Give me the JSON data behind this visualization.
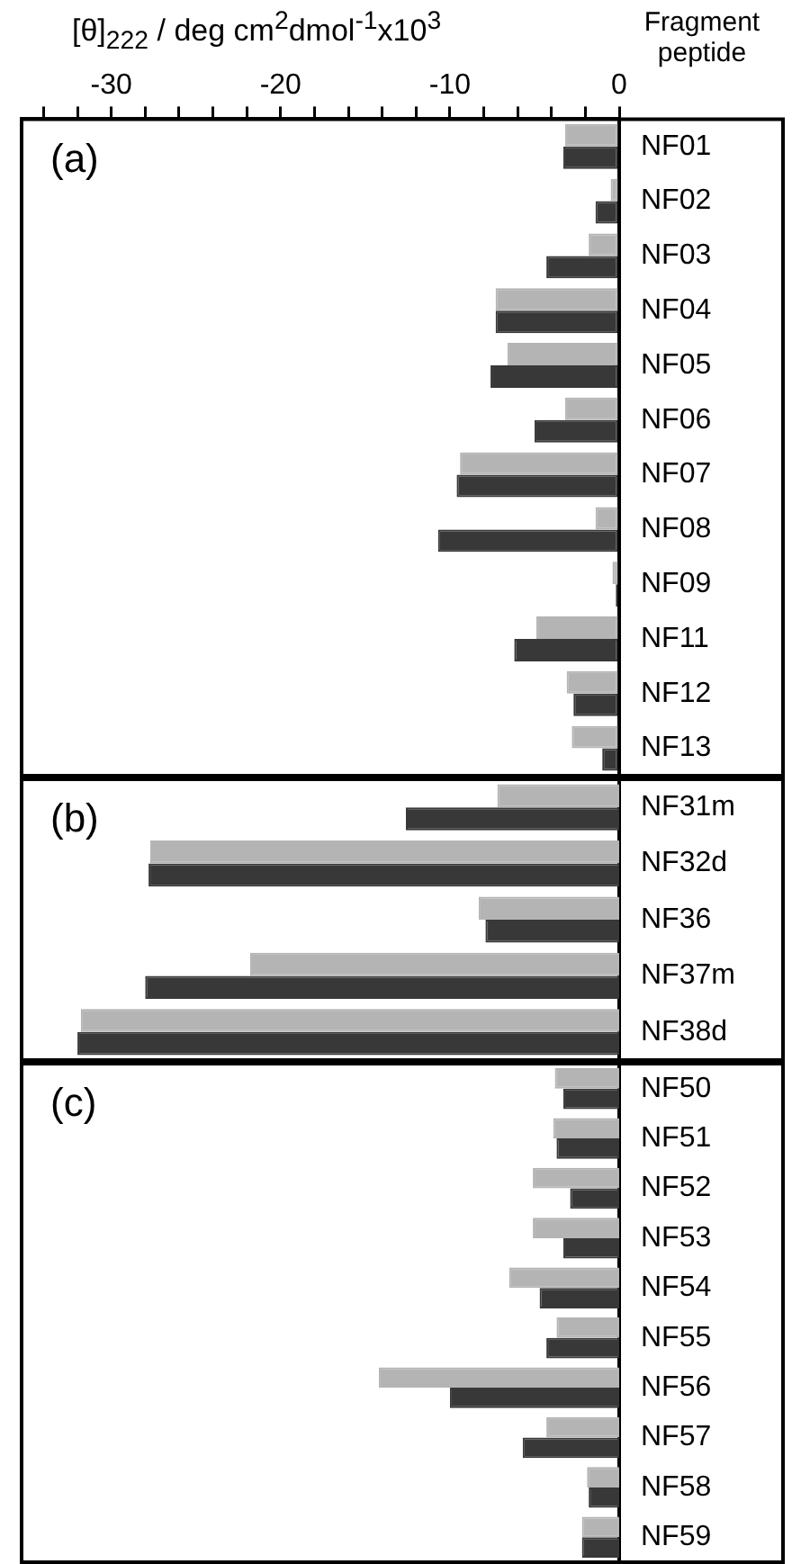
{
  "chart_data": [
    {
      "type": "bar",
      "orientation": "horizontal",
      "xlabel": "[θ]$_{222}$ / deg cm$^{2}$dmol$^{-1}$x10$^{3}$",
      "ylabel": "Fragment peptide",
      "annotations": [
        "(a)"
      ],
      "categories": [
        "NF01",
        "NF02",
        "NF03",
        "NF04",
        "NF05",
        "NF06",
        "NF07",
        "NF08",
        "NF09",
        "NF11",
        "NF12",
        "NF13"
      ],
      "series": [
        {
          "color": "#b4b4b4",
          "values": [
            -3.2,
            -0.5,
            -1.8,
            -7.3,
            -6.6,
            -3.2,
            -9.4,
            -1.4,
            -0.4,
            -4.9,
            -3.1,
            -2.8
          ]
        },
        {
          "color": "#383838",
          "values": [
            -3.3,
            -1.4,
            -4.3,
            -7.3,
            -7.6,
            -5.0,
            -9.6,
            -10.7,
            -0.2,
            -6.2,
            -2.7,
            -1.0
          ]
        }
      ],
      "xlim": [
        -35.3,
        0
      ],
      "xticks": [
        {
          "value": -34,
          "label": null
        },
        {
          "value": -32,
          "label": null
        },
        -30,
        {
          "value": -28,
          "label": null
        },
        {
          "value": -26,
          "label": null
        },
        {
          "value": -24,
          "label": null
        },
        {
          "value": -22,
          "label": null
        },
        -20,
        {
          "value": -18,
          "label": null
        },
        {
          "value": -16,
          "label": null
        },
        {
          "value": -14,
          "label": null
        },
        {
          "value": -12,
          "label": null
        },
        -10,
        {
          "value": -8,
          "label": null
        },
        {
          "value": -6,
          "label": null
        },
        {
          "value": -4,
          "label": null
        },
        {
          "value": -2,
          "label": null
        },
        0
      ]
    },
    {
      "type": "bar",
      "orientation": "horizontal",
      "annotations": [
        "(b)"
      ],
      "tick_labels": "y",
      "categories": [
        "NF31m",
        "NF32d",
        "NF36",
        "NF37m",
        "NF38d"
      ],
      "series": [
        {
          "color": "#b4b4b4",
          "values": [
            -7.2,
            -27.7,
            -8.3,
            -21.8,
            -31.8
          ]
        },
        {
          "color": "#383838",
          "values": [
            -12.6,
            -27.8,
            -7.9,
            -28.0,
            -32.0
          ]
        }
      ],
      "xlim": [
        -35.3,
        0
      ]
    },
    {
      "type": "bar",
      "orientation": "horizontal",
      "annotations": [
        "(c)"
      ],
      "tick_labels": "y",
      "categories": [
        "NF50",
        "NF51",
        "NF52",
        "NF53",
        "NF54",
        "NF55",
        "NF56",
        "NF57",
        "NF58",
        "NF59"
      ],
      "series": [
        {
          "color": "#b4b4b4",
          "values": [
            -3.8,
            -3.9,
            -5.1,
            -5.1,
            -6.5,
            -3.7,
            -14.2,
            -4.3,
            -1.9,
            -2.2
          ]
        },
        {
          "color": "#383838",
          "values": [
            -3.3,
            -3.7,
            -2.9,
            -3.3,
            -4.7,
            -4.3,
            -10.0,
            -5.7,
            -1.8,
            -2.2
          ]
        }
      ],
      "xlim": [
        -35.3,
        0
      ]
    }
  ]
}
